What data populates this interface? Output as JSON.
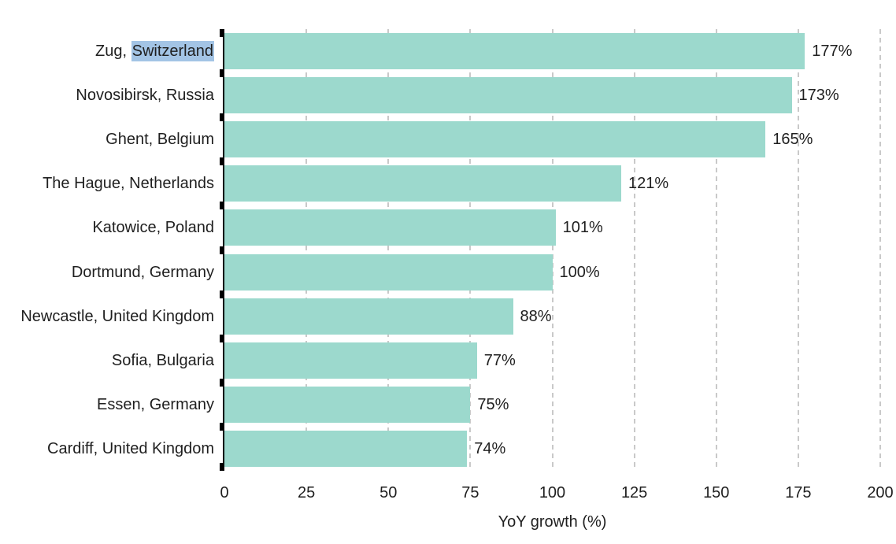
{
  "chart_data": {
    "type": "bar",
    "orientation": "horizontal",
    "title": "",
    "xlabel": "YoY growth (%)",
    "ylabel": "",
    "categories": [
      "Zug, Switzerland",
      "Novosibirsk, Russia",
      "Ghent, Belgium",
      "The Hague, Netherlands",
      "Katowice, Poland",
      "Dortmund, Germany",
      "Newcastle, United Kingdom",
      "Sofia, Bulgaria",
      "Essen, Germany",
      "Cardiff, United Kingdom"
    ],
    "values": [
      177,
      173,
      165,
      121,
      101,
      100,
      88,
      77,
      75,
      74
    ],
    "value_labels": [
      "177%",
      "173%",
      "165%",
      "121%",
      "101%",
      "100%",
      "88%",
      "77%",
      "75%",
      "74%"
    ],
    "xlim": [
      0,
      200
    ],
    "x_ticks": [
      0,
      25,
      50,
      75,
      100,
      125,
      150,
      175,
      200
    ],
    "grid": "vertical dashed",
    "legend": "none",
    "colors": {
      "bar": "#9cd9cd",
      "grid": "#c9c9c9",
      "axis": "#000000",
      "text": "#1f1f1f",
      "selection_highlight": "#a3c4e5"
    },
    "text_selection": {
      "category_index": 0,
      "selected_text": "Switzerland"
    }
  }
}
